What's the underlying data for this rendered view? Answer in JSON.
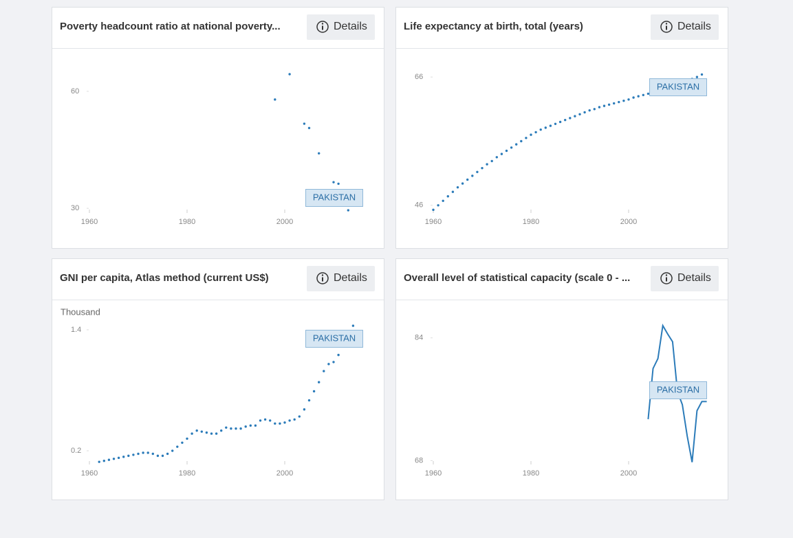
{
  "details_label": "Details",
  "chart_data": [
    {
      "type": "scatter",
      "title": "Poverty headcount ratio at national poverty...",
      "xlim": [
        1960,
        2016
      ],
      "xticks": [
        1960,
        1980,
        2000
      ],
      "ylim": [
        28.8,
        65.8
      ],
      "yticks": [
        30,
        60
      ],
      "legend": "lower right",
      "series": [
        {
          "name": "PAKISTAN",
          "color": "#2b7bb9",
          "x": [
            1998,
            2001,
            2004,
            2005,
            2007,
            2010,
            2011,
            2013
          ],
          "values": [
            57.9,
            64.4,
            51.7,
            50.6,
            44.1,
            36.7,
            36.3,
            29.5
          ]
        }
      ]
    },
    {
      "type": "scatter",
      "title": "Life expectancy at birth, total (years)",
      "xlim": [
        1960,
        2016
      ],
      "xticks": [
        1960,
        1980,
        2000
      ],
      "ylim": [
        44.8,
        67.3
      ],
      "yticks": [
        46,
        66
      ],
      "legend": "upper right",
      "series": [
        {
          "name": "PAKISTAN",
          "color": "#2b7bb9",
          "x": [
            1960,
            1961,
            1962,
            1963,
            1964,
            1965,
            1966,
            1967,
            1968,
            1969,
            1970,
            1971,
            1972,
            1973,
            1974,
            1975,
            1976,
            1977,
            1978,
            1979,
            1980,
            1981,
            1982,
            1983,
            1984,
            1985,
            1986,
            1987,
            1988,
            1989,
            1990,
            1991,
            1992,
            1993,
            1994,
            1995,
            1996,
            1997,
            1998,
            1999,
            2000,
            2001,
            2002,
            2003,
            2004,
            2005,
            2006,
            2007,
            2008,
            2009,
            2010,
            2011,
            2012,
            2013,
            2014,
            2015
          ],
          "values": [
            45.3,
            46.0,
            46.7,
            47.4,
            48.1,
            48.8,
            49.4,
            50.0,
            50.6,
            51.2,
            51.8,
            52.4,
            52.9,
            53.5,
            54.0,
            54.5,
            55.0,
            55.5,
            56.0,
            56.5,
            57.0,
            57.4,
            57.8,
            58.1,
            58.4,
            58.7,
            59.0,
            59.3,
            59.6,
            59.9,
            60.2,
            60.5,
            60.8,
            61.0,
            61.3,
            61.5,
            61.7,
            61.9,
            62.1,
            62.3,
            62.5,
            62.8,
            63.0,
            63.2,
            63.4,
            63.7,
            63.9,
            64.1,
            64.4,
            64.6,
            64.8,
            65.1,
            65.4,
            65.7,
            66.0,
            66.4
          ]
        }
      ]
    },
    {
      "type": "scatter",
      "title": "GNI per capita, Atlas method (current US$)",
      "ylabel": "Thousand",
      "xlim": [
        1960,
        2016
      ],
      "xticks": [
        1960,
        1980,
        2000
      ],
      "ylim": [
        0.064,
        1.495
      ],
      "yticks": [
        0.2,
        1.4
      ],
      "legend": "upper right",
      "series": [
        {
          "name": "PAKISTAN",
          "color": "#2b7bb9",
          "x": [
            1962,
            1963,
            1964,
            1965,
            1966,
            1967,
            1968,
            1969,
            1970,
            1971,
            1972,
            1973,
            1974,
            1975,
            1976,
            1977,
            1978,
            1979,
            1980,
            1981,
            1982,
            1983,
            1984,
            1985,
            1986,
            1987,
            1988,
            1989,
            1990,
            1991,
            1992,
            1993,
            1994,
            1995,
            1996,
            1997,
            1998,
            1999,
            2000,
            2001,
            2002,
            2003,
            2004,
            2005,
            2006,
            2007,
            2008,
            2009,
            2010,
            2011,
            2012,
            2013,
            2014
          ],
          "values": [
            0.09,
            0.1,
            0.11,
            0.12,
            0.13,
            0.14,
            0.15,
            0.16,
            0.17,
            0.18,
            0.18,
            0.17,
            0.15,
            0.15,
            0.17,
            0.2,
            0.24,
            0.28,
            0.32,
            0.37,
            0.4,
            0.39,
            0.38,
            0.37,
            0.37,
            0.4,
            0.43,
            0.42,
            0.42,
            0.42,
            0.44,
            0.45,
            0.45,
            0.5,
            0.51,
            0.5,
            0.47,
            0.47,
            0.48,
            0.5,
            0.51,
            0.54,
            0.61,
            0.7,
            0.79,
            0.88,
            0.99,
            1.06,
            1.08,
            1.15,
            1.25,
            1.38,
            1.44
          ]
        }
      ]
    },
    {
      "type": "line",
      "title": "Overall level of statistical capacity (scale 0 - ...",
      "xlim": [
        1960,
        2016
      ],
      "xticks": [
        1960,
        1980,
        2000
      ],
      "ylim": [
        67.5,
        86.3
      ],
      "yticks": [
        68,
        84
      ],
      "legend": "center right",
      "series": [
        {
          "name": "PAKISTAN",
          "color": "#2b7bb9",
          "x": [
            2004,
            2005,
            2006,
            2007,
            2008,
            2009,
            2010,
            2011,
            2012,
            2013,
            2014,
            2015,
            2016
          ],
          "values": [
            73.4,
            80.0,
            81.3,
            85.6,
            84.5,
            83.5,
            77.0,
            75.3,
            71.2,
            67.8,
            74.5,
            75.7,
            75.7
          ]
        }
      ]
    }
  ]
}
